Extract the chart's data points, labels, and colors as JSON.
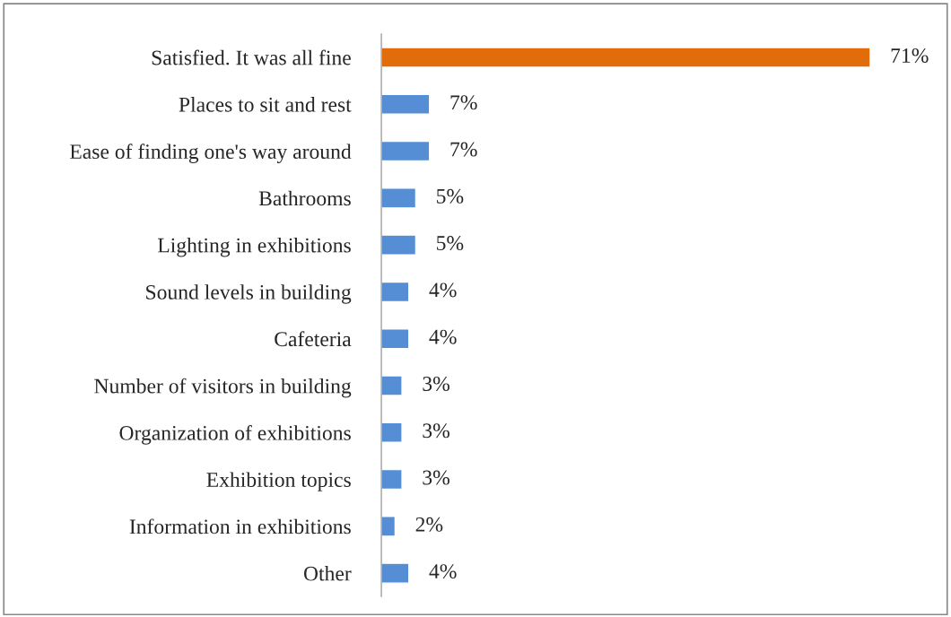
{
  "chart_data": {
    "type": "bar",
    "orientation": "horizontal",
    "categories": [
      "Satisfied. It was all fine",
      "Places to sit and rest",
      "Ease of finding one's way around",
      "Bathrooms",
      "Lighting in exhibitions",
      "Sound levels in building",
      "Cafeteria",
      "Number of visitors in building",
      "Organization of exhibitions",
      "Exhibition topics",
      "Information in exhibitions",
      "Other"
    ],
    "values": [
      71,
      7,
      7,
      5,
      5,
      4,
      4,
      3,
      3,
      3,
      2,
      4
    ],
    "colors": [
      "#e36c0a",
      "#558ed5",
      "#558ed5",
      "#558ed5",
      "#558ed5",
      "#558ed5",
      "#558ed5",
      "#558ed5",
      "#558ed5",
      "#558ed5",
      "#558ed5",
      "#558ed5"
    ],
    "value_labels": [
      "71%",
      "7%",
      "7%",
      "5%",
      "5%",
      "4%",
      "4%",
      "3%",
      "3%",
      "3%",
      "2%",
      "4%"
    ],
    "tick_labels": "y",
    "grid": false,
    "legend": false
  }
}
